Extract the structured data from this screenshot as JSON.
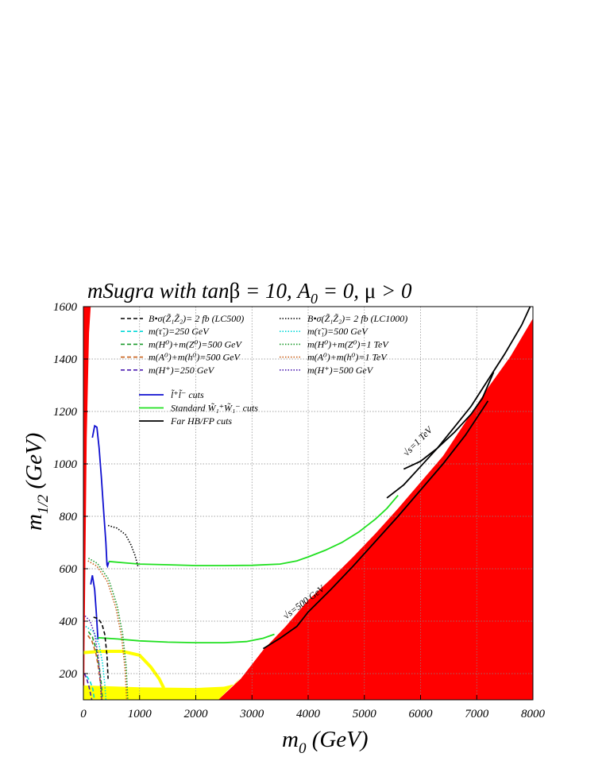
{
  "chart_data": {
    "type": "line",
    "title": "mSugra with tanβ = 10, A₀ = 0, μ > 0",
    "title_parts": {
      "pre": "mSugra with tan",
      "beta": "β",
      "mid": " = 10, A",
      "sub": "0",
      "post": " = 0, ",
      "mu": "μ",
      "tail": " > 0"
    },
    "xlabel": {
      "main": "m",
      "sub": "0",
      "unit": " (GeV)"
    },
    "ylabel": {
      "main": "m",
      "sub": "1/2",
      "unit": " (GeV)"
    },
    "xlim": [
      0,
      8000
    ],
    "ylim": [
      100,
      1600
    ],
    "xticks": [
      "0",
      "1000",
      "2000",
      "3000",
      "4000",
      "5000",
      "6000",
      "7000",
      "8000"
    ],
    "yticks": [
      "200",
      "400",
      "600",
      "800",
      "1000",
      "1200",
      "1400",
      "1600"
    ],
    "xtick_values": [
      0,
      1000,
      2000,
      3000,
      4000,
      5000,
      6000,
      7000,
      8000
    ],
    "ytick_values": [
      200,
      400,
      600,
      800,
      1000,
      1200,
      1400,
      1600
    ],
    "grid": true,
    "legend_position": "top",
    "legend": [
      {
        "text": "B•σ(Z̃₁Z̃₂)= 2 fb (LC500)",
        "color": "#000000",
        "style": "dashed"
      },
      {
        "text": "B•σ(Z̃₁Z̃₂)= 2 fb (LC1000)",
        "color": "#000000",
        "style": "dotted"
      },
      {
        "text": "m(τ̃₁)=250 GeV",
        "color": "#00d8d8",
        "style": "dashed"
      },
      {
        "text": "m(τ̃₁)=500 GeV",
        "color": "#00d8d8",
        "style": "dotted"
      },
      {
        "text": "m(H⁰)+m(Z⁰)=500 GeV",
        "color": "#1a9a2a",
        "style": "dashed"
      },
      {
        "text": "m(H⁰)+m(Z⁰)=1 TeV",
        "color": "#1a9a2a",
        "style": "dotted"
      },
      {
        "text": "m(A⁰)+m(h⁰)=500 GeV",
        "color": "#c8601a",
        "style": "dashed"
      },
      {
        "text": "m(A⁰)+m(h⁰)=1 TeV",
        "color": "#c8601a",
        "style": "dotted"
      },
      {
        "text": "m(H⁺)=250 GeV",
        "color": "#4a1ab0",
        "style": "dashed"
      },
      {
        "text": "m(H⁺)=500 GeV",
        "color": "#4a1ab0",
        "style": "dotted"
      }
    ],
    "legend2": [
      {
        "text": "l̃⁺l̃⁻ cuts",
        "color": "#1010d0"
      },
      {
        "text": "Standard W̃₁⁺W̃₁⁻ cuts",
        "color": "#20e020"
      },
      {
        "text": "Far HB/FP cuts",
        "color": "#000000"
      }
    ],
    "annotations": [
      "√s=1 TeV",
      "√s=500 GeV"
    ],
    "excluded_regions": [
      {
        "name": "excluded-right",
        "color": "#ff0000",
        "boundary": [
          [
            2400,
            100
          ],
          [
            2800,
            180
          ],
          [
            3200,
            290
          ],
          [
            3600,
            380
          ],
          [
            4000,
            480
          ],
          [
            4400,
            560
          ],
          [
            4800,
            645
          ],
          [
            5200,
            735
          ],
          [
            5600,
            830
          ],
          [
            6000,
            930
          ],
          [
            6400,
            1030
          ],
          [
            6800,
            1160
          ],
          [
            7200,
            1290
          ],
          [
            7600,
            1410
          ],
          [
            8000,
            1555
          ]
        ]
      },
      {
        "name": "excluded-left",
        "color": "#ff0000",
        "boundary": [
          [
            0,
            100
          ],
          [
            0,
            1600
          ],
          [
            130,
            1600
          ],
          [
            100,
            1500
          ],
          [
            60,
            1100
          ],
          [
            40,
            700
          ],
          [
            20,
            300
          ],
          [
            15,
            100
          ]
        ]
      }
    ],
    "lep_region": {
      "color": "#ffff00",
      "top": [
        [
          0,
          155
        ],
        [
          1000,
          148
        ],
        [
          2000,
          145
        ],
        [
          2500,
          150
        ],
        [
          2700,
          160
        ],
        [
          2800,
          185
        ]
      ],
      "bottom": [
        [
          2400,
          100
        ],
        [
          0,
          100
        ]
      ]
    },
    "lep_arc": {
      "color": "#ffff00",
      "points": [
        [
          0,
          280
        ],
        [
          300,
          285
        ],
        [
          700,
          285
        ],
        [
          1000,
          270
        ],
        [
          1200,
          225
        ],
        [
          1350,
          180
        ],
        [
          1430,
          145
        ]
      ]
    },
    "series": [
      {
        "name": "l̃⁺l̃⁻ cuts (LC1000)",
        "color": "#1010d0",
        "style": "solid",
        "x": [
          160,
          200,
          240,
          280,
          320,
          360,
          400,
          420,
          430,
          450
        ],
        "y": [
          1100,
          1145,
          1140,
          1060,
          950,
          820,
          700,
          615,
          610,
          625
        ]
      },
      {
        "name": "l̃⁺l̃⁻ cuts (LC500)",
        "color": "#1010d0",
        "style": "solid",
        "x": [
          130,
          160,
          200,
          230,
          250,
          260
        ],
        "y": [
          540,
          575,
          520,
          430,
          360,
          330
        ]
      },
      {
        "name": "Standard W̃₁⁺W̃₁⁻ cuts (LC1000)",
        "color": "#20e020",
        "style": "solid",
        "x": [
          450,
          700,
          1000,
          1500,
          2000,
          2500,
          3000,
          3500,
          3800,
          4000,
          4300,
          4600,
          4900,
          5200,
          5400,
          5600
        ],
        "y": [
          628,
          623,
          618,
          615,
          612,
          612,
          613,
          618,
          630,
          645,
          670,
          700,
          740,
          790,
          830,
          880
        ]
      },
      {
        "name": "Standard W̃₁⁺W̃₁⁻ cuts (LC500)",
        "color": "#20e020",
        "style": "solid",
        "x": [
          260,
          600,
          1000,
          1500,
          2000,
          2500,
          2900,
          3200,
          3400
        ],
        "y": [
          337,
          332,
          325,
          320,
          318,
          318,
          322,
          335,
          350
        ]
      },
      {
        "name": "Far HB/FP cuts (LC1000)",
        "color": "#000000",
        "style": "solid",
        "x": [
          5400,
          5700,
          6000,
          6300,
          6600,
          6900,
          7200,
          7500,
          7800,
          7950
        ],
        "y": [
          870,
          920,
          990,
          1060,
          1140,
          1220,
          1320,
          1420,
          1530,
          1600
        ]
      },
      {
        "name": "Far HB/FP cuts (LC1000, lower)",
        "color": "#000000",
        "style": "solid",
        "x": [
          5700,
          6000,
          6300,
          6600,
          6900,
          7100,
          7300
        ],
        "y": [
          980,
          1010,
          1060,
          1120,
          1190,
          1250,
          1350
        ]
      },
      {
        "name": "Far HB/FP cuts (LC500)",
        "color": "#000000",
        "style": "solid",
        "x": [
          3200,
          3500,
          3800,
          4000,
          4400,
          4800,
          5200,
          5600,
          6000,
          6400,
          6800,
          7200
        ],
        "y": [
          295,
          335,
          380,
          435,
          520,
          610,
          705,
          800,
          900,
          1000,
          1110,
          1240
        ]
      },
      {
        "name": "B•σ 2 fb (LC500)",
        "color": "#000000",
        "style": "dashed",
        "x": [
          180,
          260,
          330,
          380,
          420,
          440
        ],
        "y": [
          415,
          410,
          390,
          350,
          270,
          180
        ]
      },
      {
        "name": "B•σ 2 fb (LC1000)",
        "color": "#000000",
        "style": "dotted",
        "x": [
          440,
          600,
          750,
          850,
          920,
          970
        ],
        "y": [
          765,
          755,
          730,
          690,
          650,
          610
        ]
      },
      {
        "name": "m(τ̃₁)=250 GeV",
        "color": "#00d8d8",
        "style": "dashed",
        "x": [
          60,
          120,
          170,
          190,
          200
        ],
        "y": [
          190,
          170,
          140,
          110,
          100
        ]
      },
      {
        "name": "m(τ̃₁)=500 GeV",
        "color": "#00d8d8",
        "style": "dotted",
        "x": [
          40,
          180,
          280,
          340,
          380,
          400
        ],
        "y": [
          380,
          360,
          310,
          240,
          160,
          100
        ]
      },
      {
        "name": "m(H⁰)+m(Z⁰)=500 GeV",
        "color": "#1a9a2a",
        "style": "dashed",
        "x": [
          90,
          160,
          230,
          280,
          320,
          340
        ],
        "y": [
          360,
          340,
          290,
          230,
          160,
          100
        ]
      },
      {
        "name": "m(H⁰)+m(Z⁰)=1 TeV",
        "color": "#1a9a2a",
        "style": "dotted",
        "x": [
          90,
          250,
          450,
          600,
          700,
          760,
          790
        ],
        "y": [
          640,
          620,
          560,
          460,
          350,
          230,
          100
        ]
      },
      {
        "name": "m(A⁰)+m(h⁰)=500 GeV",
        "color": "#c8601a",
        "style": "dashed",
        "x": [
          80,
          150,
          220,
          270,
          310,
          330
        ],
        "y": [
          345,
          325,
          280,
          220,
          150,
          100
        ]
      },
      {
        "name": "m(A⁰)+m(h⁰)=1 TeV",
        "color": "#c8601a",
        "style": "dotted",
        "x": [
          80,
          240,
          430,
          580,
          680,
          740,
          770
        ],
        "y": [
          630,
          610,
          550,
          450,
          340,
          220,
          100
        ]
      },
      {
        "name": "m(H⁺)=250 GeV",
        "color": "#4a1ab0",
        "style": "dashed",
        "x": [
          20,
          60,
          100,
          130,
          150
        ],
        "y": [
          200,
          180,
          150,
          120,
          100
        ]
      },
      {
        "name": "m(H⁺)=500 GeV",
        "color": "#4a1ab0",
        "style": "dotted",
        "x": [
          30,
          120,
          200,
          260,
          300,
          320
        ],
        "y": [
          420,
          400,
          350,
          270,
          180,
          100
        ]
      }
    ]
  }
}
